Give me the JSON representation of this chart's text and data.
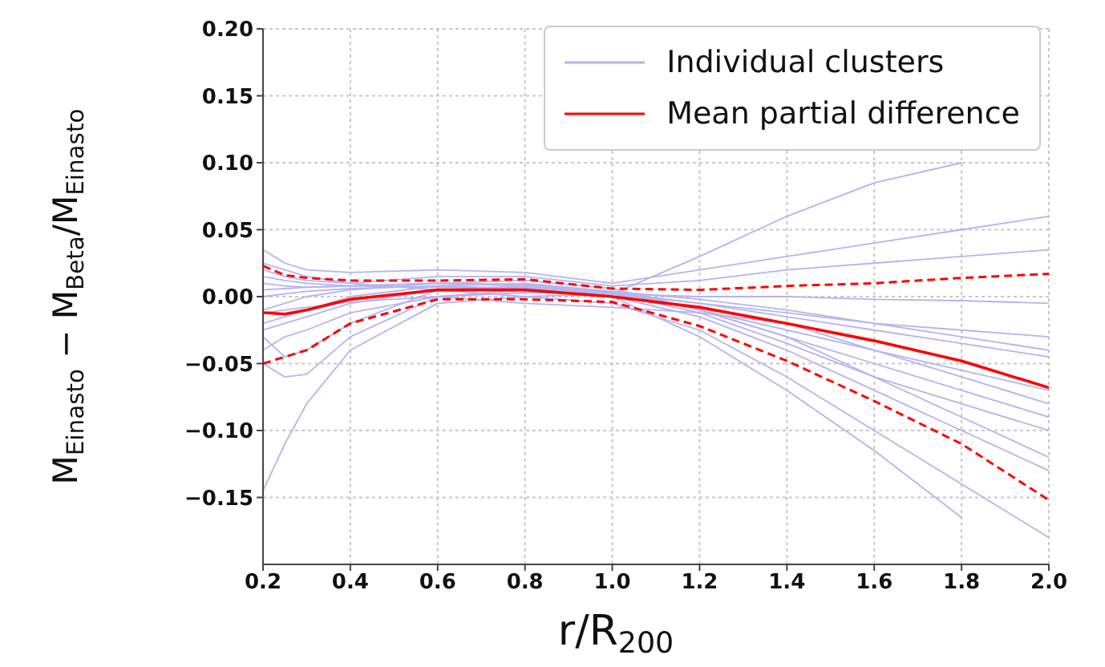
{
  "chart_data": {
    "type": "line",
    "xlabel": "r/R$_{200}$",
    "ylabel": "M$_{Einasto}$ − M$_{Beta}$/M$_{Einasto}$",
    "x": [
      0.2,
      0.25,
      0.3,
      0.4,
      0.6,
      0.8,
      1.0,
      1.2,
      1.4,
      1.6,
      1.8,
      2.0
    ],
    "xlim": [
      0.2,
      2.0
    ],
    "xticks": [
      0.2,
      0.4,
      0.6,
      0.8,
      {
        "value": 1.0,
        "label": "1.0"
      },
      1.2,
      1.4,
      1.6,
      1.8,
      {
        "value": 2.0,
        "label": "2.0"
      }
    ],
    "ylim": [
      -0.2,
      0.2
    ],
    "yticks": [
      {
        "value": -0.15,
        "label": "−0.15"
      },
      {
        "value": -0.1,
        "label": "−0.10"
      },
      {
        "value": -0.05,
        "label": "−0.05"
      },
      {
        "value": 0,
        "label": "0.00"
      },
      {
        "value": 0.05,
        "label": "0.05"
      },
      {
        "value": 0.1,
        "label": "0.10"
      },
      {
        "value": 0.15,
        "label": "0.15"
      },
      {
        "value": 0.2,
        "label": "0.20"
      }
    ],
    "grid": true,
    "legend": "top right",
    "marker": "none",
    "series": [
      {
        "name": "Individual clusters",
        "color": "#b4b4f0",
        "line_style": "solid",
        "values": [
          -0.145,
          -0.11,
          -0.08,
          -0.04,
          -0.005,
          0.0,
          0.002,
          0.03,
          0.06,
          0.085,
          0.1,
          null
        ]
      },
      {
        "color": "#b4b4f0",
        "line_style": "solid",
        "values": [
          0.035,
          0.025,
          0.02,
          0.018,
          0.02,
          0.018,
          0.01,
          0.02,
          0.03,
          0.04,
          0.05,
          0.06
        ]
      },
      {
        "color": "#b4b4f0",
        "line_style": "solid",
        "values": [
          -0.05,
          -0.06,
          -0.058,
          -0.03,
          0.0,
          0.005,
          0.002,
          0.0,
          0.0,
          -0.002,
          -0.003,
          -0.005
        ]
      },
      {
        "color": "#b4b4f0",
        "line_style": "solid",
        "values": [
          -0.03,
          -0.045,
          -0.04,
          -0.02,
          0.005,
          0.008,
          0.003,
          -0.01,
          -0.03,
          -0.06,
          -0.09,
          -0.12
        ]
      },
      {
        "color": "#b4b4f0",
        "line_style": "solid",
        "values": [
          0.01,
          0.008,
          0.007,
          0.008,
          0.01,
          0.009,
          0.003,
          -0.005,
          -0.012,
          -0.02,
          -0.025,
          -0.03
        ]
      },
      {
        "color": "#b4b4f0",
        "line_style": "solid",
        "values": [
          -0.02,
          -0.015,
          -0.01,
          0.0,
          0.008,
          0.01,
          0.004,
          -0.01,
          -0.025,
          -0.04,
          -0.055,
          -0.07
        ]
      },
      {
        "color": "#b4b4f0",
        "line_style": "solid",
        "values": [
          0.0,
          0.002,
          0.004,
          0.006,
          0.008,
          0.006,
          0.0,
          -0.015,
          -0.04,
          -0.07,
          -0.1,
          -0.13
        ]
      },
      {
        "color": "#b4b4f0",
        "line_style": "solid",
        "values": [
          0.025,
          0.02,
          0.015,
          0.01,
          0.005,
          0.0,
          -0.005,
          -0.025,
          -0.06,
          -0.1,
          -0.14,
          -0.18
        ]
      },
      {
        "color": "#b4b4f0",
        "line_style": "solid",
        "values": [
          -0.01,
          -0.005,
          0.0,
          0.005,
          0.01,
          0.008,
          0.0,
          -0.03,
          -0.07,
          -0.115,
          -0.165,
          null
        ]
      },
      {
        "color": "#b4b4f0",
        "line_style": "solid",
        "values": [
          0.005,
          0.006,
          0.007,
          0.008,
          0.01,
          0.012,
          0.006,
          -0.01,
          -0.03,
          -0.05,
          -0.07,
          -0.09
        ]
      },
      {
        "color": "#b4b4f0",
        "line_style": "solid",
        "values": [
          -0.04,
          -0.03,
          -0.025,
          -0.012,
          0.0,
          0.003,
          0.002,
          -0.005,
          -0.015,
          -0.025,
          -0.035,
          -0.045
        ]
      },
      {
        "color": "#b4b4f0",
        "line_style": "solid",
        "values": [
          0.015,
          0.012,
          0.01,
          0.008,
          0.007,
          0.006,
          0.004,
          -0.002,
          -0.01,
          -0.02,
          -0.03,
          -0.04
        ]
      },
      {
        "color": "#b4b4f0",
        "line_style": "solid",
        "values": [
          -0.025,
          -0.02,
          -0.015,
          -0.005,
          0.005,
          0.007,
          0.002,
          -0.012,
          -0.035,
          -0.06,
          -0.08,
          -0.1
        ]
      },
      {
        "color": "#b4b4f0",
        "line_style": "solid",
        "values": [
          0.02,
          0.015,
          0.012,
          0.01,
          0.015,
          0.015,
          0.008,
          0.012,
          0.02,
          0.025,
          0.03,
          0.035
        ]
      },
      {
        "color": "#b4b4f0",
        "line_style": "solid",
        "values": [
          -0.012,
          -0.01,
          -0.008,
          -0.004,
          0.0,
          -0.005,
          -0.008,
          -0.012,
          -0.02,
          -0.04,
          -0.06,
          -0.08
        ]
      },
      {
        "color": "#ff0000",
        "line_style": "dashed",
        "values": [
          0.023,
          0.016,
          0.014,
          0.012,
          0.012,
          0.013,
          0.006,
          0.005,
          0.008,
          0.01,
          0.014,
          0.017
        ]
      },
      {
        "color": "#ff0000",
        "line_style": "dashed",
        "values": [
          -0.05,
          -0.045,
          -0.04,
          -0.02,
          -0.002,
          -0.002,
          -0.004,
          -0.022,
          -0.048,
          -0.078,
          -0.11,
          -0.152
        ]
      },
      {
        "name": "Mean partial difference",
        "color": "#ff0000",
        "line_style": "solid",
        "values": [
          -0.012,
          -0.013,
          -0.01,
          -0.002,
          0.005,
          0.005,
          0.0,
          -0.008,
          -0.02,
          -0.033,
          -0.048,
          -0.068
        ]
      }
    ]
  }
}
